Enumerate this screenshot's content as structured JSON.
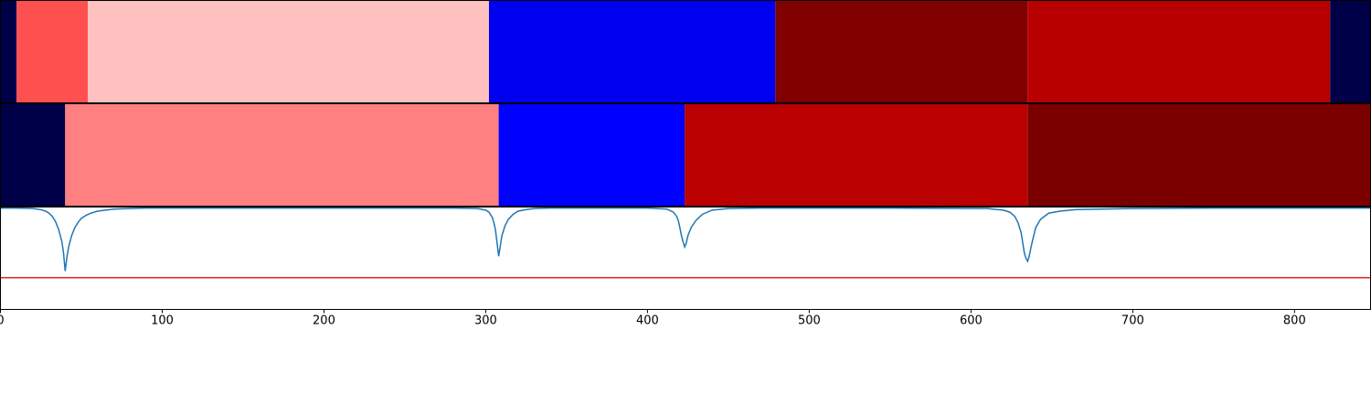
{
  "chart_data": [
    {
      "type": "segments",
      "xlim": [
        0,
        847
      ],
      "edges": [
        0,
        10,
        54,
        302,
        479,
        635,
        822,
        847
      ],
      "colors": [
        "#000048",
        "#ff5050",
        "#ffc0c0",
        "#0000f0",
        "#800000",
        "#b80000",
        "#000048"
      ]
    },
    {
      "type": "segments",
      "xlim": [
        0,
        847
      ],
      "edges": [
        0,
        40,
        308,
        423,
        635,
        847
      ],
      "colors": [
        "#000048",
        "#ff8080",
        "#0000ff",
        "#bb0000",
        "#7a0000"
      ]
    },
    {
      "type": "line",
      "xlim": [
        0,
        847
      ],
      "ylim": [
        0,
        1
      ],
      "color": "#1f77b4",
      "xticks": [
        0,
        100,
        200,
        300,
        400,
        500,
        600,
        700,
        800
      ],
      "hline": {
        "value": 0.31,
        "color": "#e8201a"
      },
      "x": [
        0,
        10,
        20,
        25,
        28,
        30,
        32,
        34,
        36,
        38,
        39,
        40,
        41,
        42,
        44,
        46,
        48,
        50,
        53,
        56,
        60,
        65,
        70,
        80,
        90,
        120,
        200,
        280,
        295,
        300,
        302,
        304,
        305,
        306,
        307,
        308,
        309,
        310,
        312,
        314,
        317,
        320,
        325,
        330,
        340,
        360,
        400,
        412,
        416,
        418,
        419,
        420,
        421,
        422,
        423,
        424,
        425,
        427,
        430,
        434,
        440,
        450,
        470,
        550,
        610,
        620,
        624,
        627,
        629,
        631,
        632,
        633,
        634,
        635,
        636,
        637,
        638,
        640,
        643,
        648,
        655,
        665,
        680,
        700,
        750,
        847
      ],
      "values": [
        0.99,
        0.99,
        0.985,
        0.975,
        0.96,
        0.94,
        0.91,
        0.86,
        0.78,
        0.66,
        0.55,
        0.375,
        0.5,
        0.6,
        0.72,
        0.8,
        0.85,
        0.89,
        0.92,
        0.94,
        0.96,
        0.97,
        0.98,
        0.985,
        0.99,
        0.99,
        0.99,
        0.99,
        0.985,
        0.97,
        0.95,
        0.9,
        0.85,
        0.78,
        0.65,
        0.52,
        0.62,
        0.72,
        0.82,
        0.88,
        0.93,
        0.96,
        0.975,
        0.985,
        0.99,
        0.99,
        0.99,
        0.98,
        0.95,
        0.91,
        0.87,
        0.8,
        0.72,
        0.66,
        0.61,
        0.65,
        0.72,
        0.8,
        0.87,
        0.93,
        0.97,
        0.985,
        0.99,
        0.99,
        0.985,
        0.97,
        0.95,
        0.91,
        0.85,
        0.75,
        0.65,
        0.55,
        0.5,
        0.47,
        0.52,
        0.6,
        0.67,
        0.8,
        0.88,
        0.94,
        0.96,
        0.975,
        0.98,
        0.985,
        0.99,
        0.99
      ]
    }
  ]
}
